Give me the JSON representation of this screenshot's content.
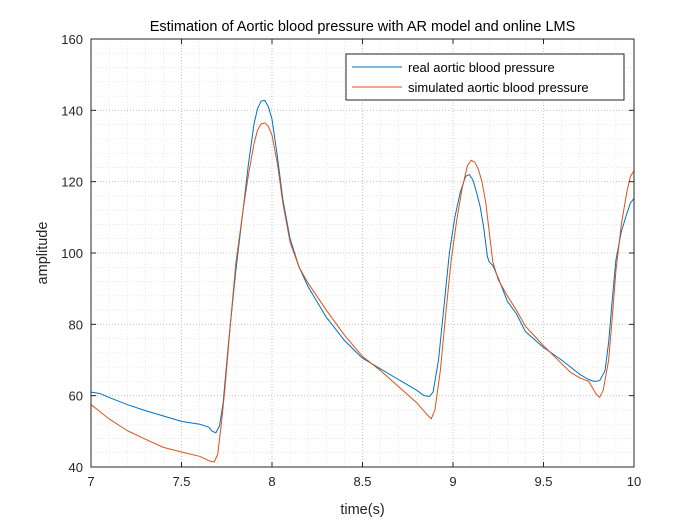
{
  "chart_data": {
    "type": "line",
    "title": "Estimation of Aortic blood pressure with AR model and online LMS",
    "xlabel": "time(s)",
    "ylabel": "amplitude",
    "xlim": [
      7,
      10
    ],
    "ylim": [
      40,
      160
    ],
    "xticks": [
      7,
      7.5,
      8,
      8.5,
      9,
      9.5,
      10
    ],
    "xtick_labels": [
      "7",
      "7.5",
      "8",
      "8.5",
      "9",
      "9.5",
      "10"
    ],
    "yticks": [
      40,
      60,
      80,
      100,
      120,
      140,
      160
    ],
    "ytick_labels": [
      "40",
      "60",
      "80",
      "100",
      "120",
      "140",
      "160"
    ],
    "minor_grid": true,
    "legend_position": "top-right",
    "series": [
      {
        "name": "real aortic blood pressure",
        "color": "#0072BD",
        "x": [
          7.0,
          7.05,
          7.1,
          7.2,
          7.3,
          7.4,
          7.5,
          7.6,
          7.65,
          7.67,
          7.69,
          7.71,
          7.73,
          7.76,
          7.8,
          7.84,
          7.87,
          7.9,
          7.92,
          7.94,
          7.96,
          7.98,
          8.0,
          8.03,
          8.06,
          8.1,
          8.15,
          8.2,
          8.3,
          8.4,
          8.5,
          8.6,
          8.7,
          8.8,
          8.84,
          8.87,
          8.89,
          8.92,
          8.95,
          8.98,
          9.01,
          9.04,
          9.07,
          9.09,
          9.11,
          9.13,
          9.15,
          9.17,
          9.19,
          9.2,
          9.22,
          9.25,
          9.3,
          9.35,
          9.4,
          9.5,
          9.6,
          9.65,
          9.7,
          9.75,
          9.78,
          9.81,
          9.84,
          9.86,
          9.88,
          9.9,
          9.93,
          9.96,
          9.98,
          10.0
        ],
        "y": [
          61,
          60.6,
          59.5,
          57.5,
          55.8,
          54.3,
          52.8,
          52.0,
          51.2,
          50.0,
          49.6,
          51.5,
          58.0,
          75.0,
          95.0,
          112.0,
          125.0,
          136.0,
          140.5,
          142.6,
          142.8,
          141.0,
          137.5,
          127.0,
          115.0,
          104.0,
          96.0,
          90.5,
          82.0,
          75.5,
          70.5,
          67.5,
          64.5,
          61.5,
          60.0,
          59.8,
          61.0,
          70.0,
          85.0,
          100.0,
          110.0,
          117.0,
          121.5,
          122.0,
          120.5,
          117.0,
          113.0,
          107.0,
          99.0,
          97.5,
          96.5,
          93.0,
          86.5,
          83.0,
          78.0,
          73.5,
          70.0,
          68.0,
          66.0,
          64.5,
          64.0,
          64.2,
          67.0,
          75.0,
          87.0,
          98.0,
          106.0,
          111.0,
          114.0,
          115.3
        ]
      },
      {
        "name": "simulated aortic blood pressure",
        "color": "#D95319",
        "x": [
          7.0,
          7.05,
          7.1,
          7.2,
          7.3,
          7.4,
          7.5,
          7.6,
          7.66,
          7.68,
          7.7,
          7.72,
          7.74,
          7.77,
          7.8,
          7.84,
          7.87,
          7.9,
          7.92,
          7.94,
          7.96,
          7.98,
          8.0,
          8.03,
          8.06,
          8.1,
          8.15,
          8.2,
          8.3,
          8.4,
          8.5,
          8.6,
          8.7,
          8.8,
          8.86,
          8.88,
          8.9,
          8.93,
          8.96,
          8.99,
          9.02,
          9.05,
          9.08,
          9.1,
          9.12,
          9.14,
          9.16,
          9.18,
          9.2,
          9.22,
          9.25,
          9.3,
          9.35,
          9.4,
          9.5,
          9.6,
          9.65,
          9.7,
          9.75,
          9.79,
          9.81,
          9.83,
          9.86,
          9.88,
          9.9,
          9.93,
          9.96,
          9.98,
          10.0
        ],
        "y": [
          57.5,
          55.5,
          53.5,
          50.2,
          47.8,
          45.5,
          44.2,
          43.0,
          41.6,
          41.4,
          43.5,
          52.0,
          62.0,
          80.0,
          97.0,
          112.0,
          122.0,
          130.5,
          134.5,
          136.2,
          136.5,
          135.5,
          133.0,
          125.0,
          114.0,
          103.0,
          96.0,
          91.5,
          84.0,
          77.0,
          71.0,
          67.0,
          62.5,
          58.0,
          54.5,
          53.5,
          56.0,
          67.0,
          83.0,
          98.0,
          109.0,
          118.0,
          124.5,
          126.0,
          125.5,
          123.5,
          120.0,
          114.5,
          106.0,
          97.5,
          92.5,
          88.0,
          84.0,
          79.5,
          74.0,
          69.0,
          66.5,
          65.0,
          64.0,
          60.5,
          59.5,
          61.5,
          70.0,
          82.0,
          95.0,
          108.0,
          117.0,
          121.5,
          123.0
        ]
      }
    ]
  }
}
